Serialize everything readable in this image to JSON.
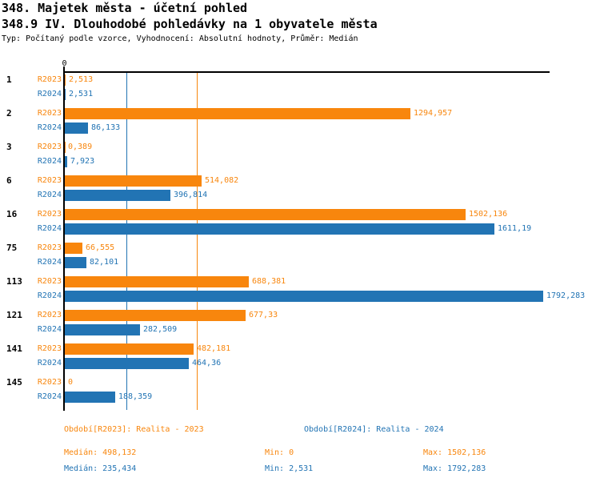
{
  "header": {
    "title_line1": "348. Majetek města - účetní pohled",
    "title_line2": "348.9 IV. Dlouhodobé pohledávky na 1 obyvatele města",
    "subtitle": "Typ: Počítaný podle vzorce, Vyhodnocení: Absolutní hodnoty, Průměr: Medián"
  },
  "colors": {
    "r2023_orange": "#F8860D",
    "r2024_blue": "#2274B4",
    "axis_black": "#000000"
  },
  "chart_data": {
    "type": "bar",
    "orientation": "horizontal",
    "x_tick_label": "0",
    "xlim": [
      0,
      1820
    ],
    "grid": false,
    "categories": [
      "1",
      "2",
      "3",
      "6",
      "16",
      "75",
      "113",
      "121",
      "141",
      "145"
    ],
    "series": [
      {
        "name": "R2023",
        "color": "#F8860D",
        "values": [
          2.513,
          1294.957,
          0.389,
          514.082,
          1502.136,
          66.555,
          688.381,
          677.33,
          482.181,
          0
        ],
        "labels": [
          "2,513",
          "1294,957",
          "0,389",
          "514,082",
          "1502,136",
          "66,555",
          "688,381",
          "677,33",
          "482,181",
          "0"
        ]
      },
      {
        "name": "R2024",
        "color": "#2274B4",
        "values": [
          2.531,
          86.133,
          7.923,
          396.814,
          1611.19,
          82.101,
          1792.283,
          282.509,
          464.36,
          188.359
        ],
        "labels": [
          "2,531",
          "86,133",
          "7,923",
          "396,814",
          "1611,19",
          "82,101",
          "1792,283",
          "282,509",
          "464,36",
          "188,359"
        ]
      }
    ],
    "reference_lines": [
      {
        "name": "median-2023",
        "value": 498.132,
        "color": "#F8860D"
      },
      {
        "name": "median-2024",
        "value": 235.434,
        "color": "#2274B4"
      }
    ]
  },
  "footer": {
    "legend_2023": "Období[R2023]: Realita - 2023",
    "legend_2024": "Období[R2024]: Realita - 2024",
    "stats_2023": {
      "median": "Medián: 498,132",
      "min": "Min: 0",
      "max": "Max: 1502,136"
    },
    "stats_2024": {
      "median": "Medián: 235,434",
      "min": "Min: 2,531",
      "max": "Max: 1792,283"
    }
  }
}
